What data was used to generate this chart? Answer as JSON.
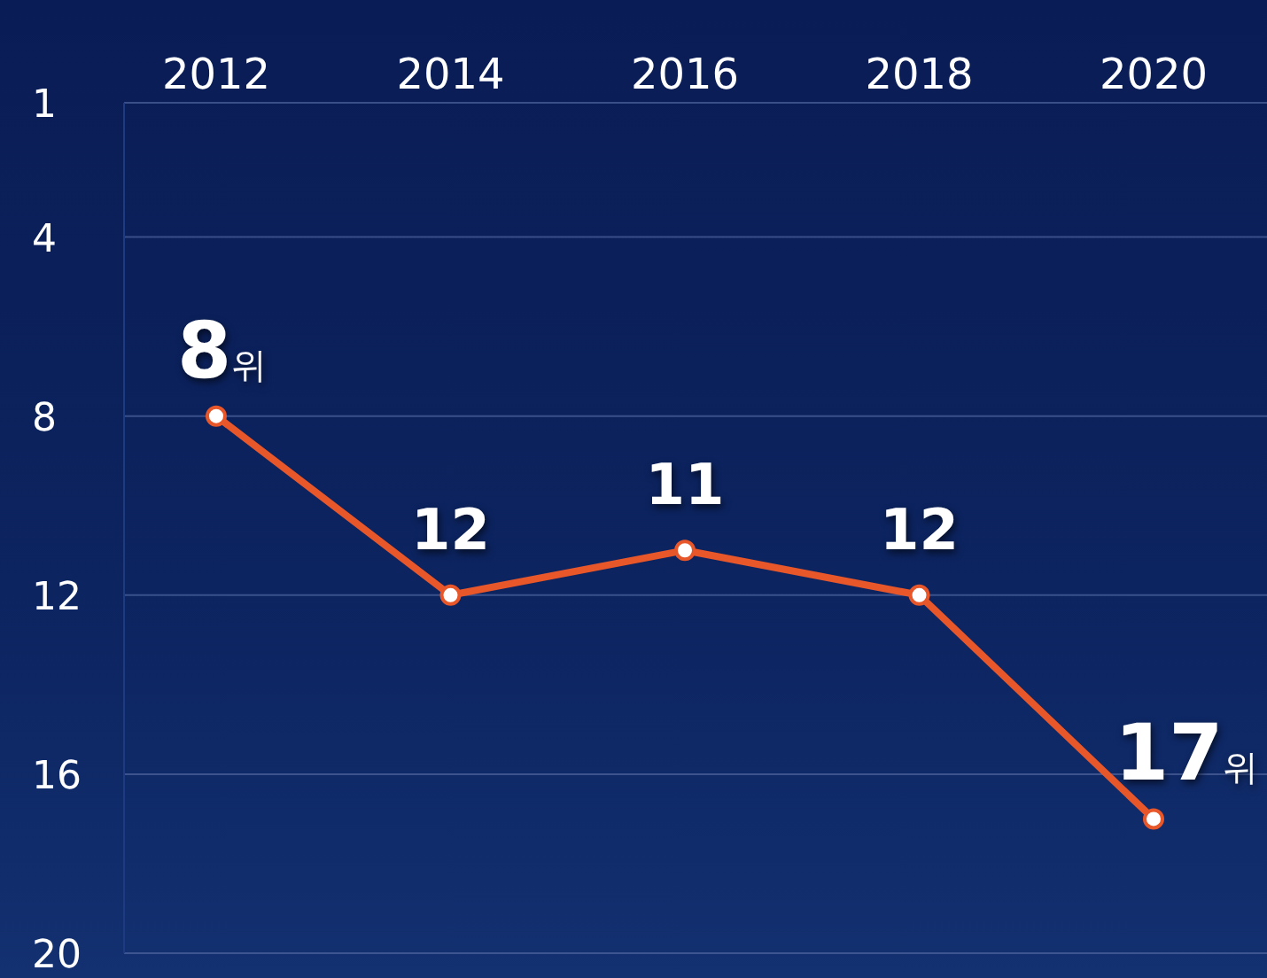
{
  "chart_data": {
    "type": "line",
    "categories": [
      "2012",
      "2014",
      "2016",
      "2018",
      "2020"
    ],
    "series": [
      {
        "color": "#e8572a",
        "values": [
          8,
          12,
          11,
          12,
          17
        ],
        "value_labels": [
          "8위",
          "12",
          "11",
          "12",
          "17위"
        ]
      }
    ],
    "ylim": [
      20,
      1
    ],
    "yticks": [
      1,
      4,
      8,
      12,
      16,
      20
    ],
    "grid": "y",
    "marker": "circle",
    "line_style": "solid"
  }
}
